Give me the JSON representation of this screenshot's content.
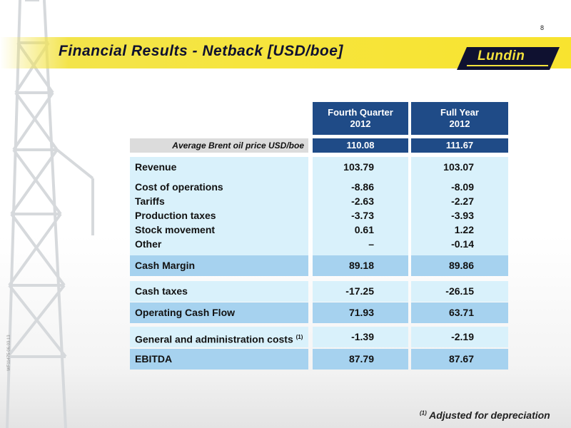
{
  "page_number": "8",
  "title": "Financial Results - Netback [USD/boe]",
  "logo_text": "Lundin",
  "side_code": "WF11475 06.03.13",
  "columns": [
    {
      "line1": "Fourth Quarter",
      "line2": "2012"
    },
    {
      "line1": "Full Year",
      "line2": "2012"
    }
  ],
  "brent": {
    "label": "Average Brent oil price USD/boe",
    "values": [
      "110.08",
      "111.67"
    ]
  },
  "revenue": {
    "label": "Revenue",
    "values": [
      "103.79",
      "103.07"
    ]
  },
  "costs": {
    "labels": [
      "Cost of operations",
      "Tariffs",
      "Production taxes",
      "Stock movement",
      "Other"
    ],
    "q4": [
      "-8.86",
      "-2.63",
      "-3.73",
      "0.61",
      "–"
    ],
    "fy": [
      "-8.09",
      "-2.27",
      "-3.93",
      "1.22",
      "-0.14"
    ]
  },
  "cash_margin": {
    "label": "Cash Margin",
    "values": [
      "89.18",
      "89.86"
    ]
  },
  "cash_taxes": {
    "label": "Cash taxes",
    "values": [
      "-17.25",
      "-26.15"
    ]
  },
  "operating_cash_flow": {
    "label": "Operating Cash Flow",
    "values": [
      "71.93",
      "63.71"
    ]
  },
  "g_and_a": {
    "label": "General and administration costs",
    "footnote_ref": "(1)",
    "values": [
      "-1.39",
      "-2.19"
    ]
  },
  "ebitda": {
    "label": "EBITDA",
    "values": [
      "87.79",
      "87.67"
    ]
  },
  "footnote": {
    "ref": "(1)",
    "text": "Adjusted for depreciation"
  },
  "colors": {
    "header_blue": "#1f4b87",
    "light_blue": "#d9f1fb",
    "mid_blue": "#a6d2ef",
    "title_yellow": "#f6e53d"
  }
}
